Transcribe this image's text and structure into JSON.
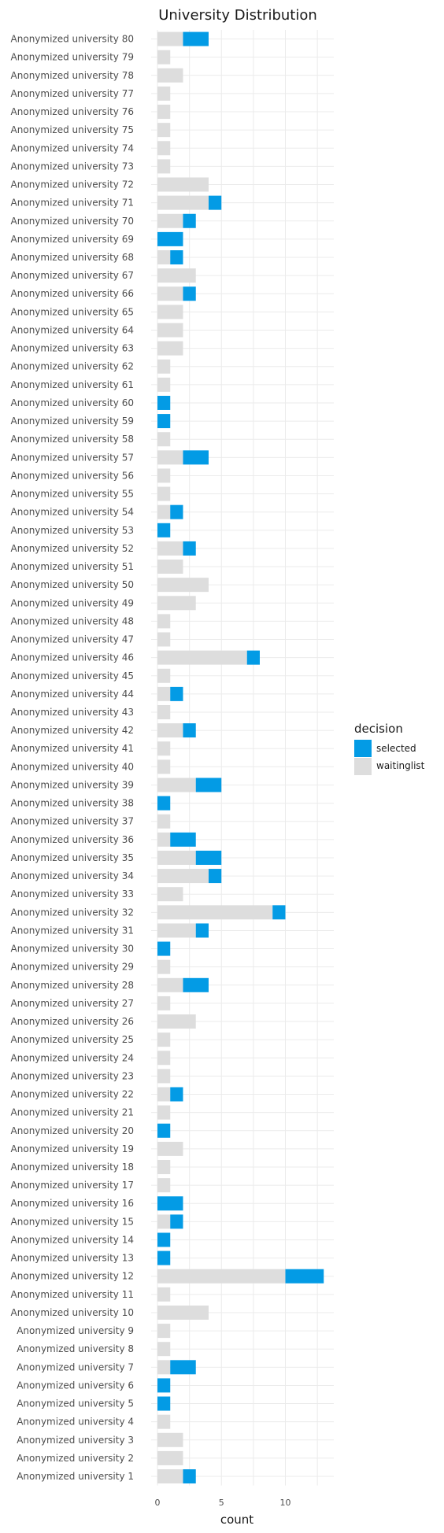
{
  "chart_data": {
    "type": "bar",
    "orientation": "horizontal",
    "stacked": true,
    "title": "University Distribution",
    "xlabel": "count",
    "ylabel": "",
    "xlim": [
      0,
      13.6
    ],
    "x_ticks": [
      0,
      5,
      10
    ],
    "grid": true,
    "legend": {
      "title": "decision",
      "position": "right"
    },
    "categories": [
      "Anonymized university 80",
      "Anonymized university 79",
      "Anonymized university 78",
      "Anonymized university 77",
      "Anonymized university 76",
      "Anonymized university 75",
      "Anonymized university 74",
      "Anonymized university 73",
      "Anonymized university 72",
      "Anonymized university 71",
      "Anonymized university 70",
      "Anonymized university 69",
      "Anonymized university 68",
      "Anonymized university 67",
      "Anonymized university 66",
      "Anonymized university 65",
      "Anonymized university 64",
      "Anonymized university 63",
      "Anonymized university 62",
      "Anonymized university 61",
      "Anonymized university 60",
      "Anonymized university 59",
      "Anonymized university 58",
      "Anonymized university 57",
      "Anonymized university 56",
      "Anonymized university 55",
      "Anonymized university 54",
      "Anonymized university 53",
      "Anonymized university 52",
      "Anonymized university 51",
      "Anonymized university 50",
      "Anonymized university 49",
      "Anonymized university 48",
      "Anonymized university 47",
      "Anonymized university 46",
      "Anonymized university 45",
      "Anonymized university 44",
      "Anonymized university 43",
      "Anonymized university 42",
      "Anonymized university 41",
      "Anonymized university 40",
      "Anonymized university 39",
      "Anonymized university 38",
      "Anonymized university 37",
      "Anonymized university 36",
      "Anonymized university 35",
      "Anonymized university 34",
      "Anonymized university 33",
      "Anonymized university 32",
      "Anonymized university 31",
      "Anonymized university 30",
      "Anonymized university 29",
      "Anonymized university 28",
      "Anonymized university 27",
      "Anonymized university 26",
      "Anonymized university 25",
      "Anonymized university 24",
      "Anonymized university 23",
      "Anonymized university 22",
      "Anonymized university 21",
      "Anonymized university 20",
      "Anonymized university 19",
      "Anonymized university 18",
      "Anonymized university 17",
      "Anonymized university 16",
      "Anonymized university 15",
      "Anonymized university 14",
      "Anonymized university 13",
      "Anonymized university 12",
      "Anonymized university 11",
      "Anonymized university 10",
      "Anonymized university 9",
      "Anonymized university 8",
      "Anonymized university 7",
      "Anonymized university 6",
      "Anonymized university 5",
      "Anonymized university 4",
      "Anonymized university 3",
      "Anonymized university 2",
      "Anonymized university 1"
    ],
    "series": [
      {
        "name": "waitinglist",
        "color": "#dddddd",
        "values": [
          2,
          1,
          2,
          1,
          1,
          1,
          1,
          1,
          4,
          4,
          2,
          0,
          1,
          3,
          2,
          2,
          2,
          2,
          1,
          1,
          0,
          0,
          1,
          2,
          1,
          1,
          1,
          0,
          2,
          2,
          4,
          3,
          1,
          1,
          7,
          1,
          1,
          1,
          2,
          1,
          1,
          3,
          0,
          1,
          1,
          3,
          4,
          2,
          9,
          3,
          0,
          1,
          2,
          1,
          3,
          1,
          1,
          1,
          1,
          1,
          0,
          2,
          1,
          1,
          0,
          1,
          0,
          0,
          10,
          1,
          4,
          1,
          1,
          1,
          0,
          0,
          1,
          2,
          2,
          2
        ]
      },
      {
        "name": "selected",
        "color": "#039be5",
        "values": [
          2,
          0,
          0,
          0,
          0,
          0,
          0,
          0,
          0,
          1,
          1,
          2,
          1,
          0,
          1,
          0,
          0,
          0,
          0,
          0,
          1,
          1,
          0,
          2,
          0,
          0,
          1,
          1,
          1,
          0,
          0,
          0,
          0,
          0,
          1,
          0,
          1,
          0,
          1,
          0,
          0,
          2,
          1,
          0,
          2,
          2,
          1,
          0,
          1,
          1,
          1,
          0,
          2,
          0,
          0,
          0,
          0,
          0,
          1,
          0,
          1,
          0,
          0,
          0,
          2,
          1,
          1,
          1,
          3,
          0,
          0,
          0,
          0,
          2,
          1,
          1,
          0,
          0,
          0,
          1
        ]
      }
    ]
  }
}
